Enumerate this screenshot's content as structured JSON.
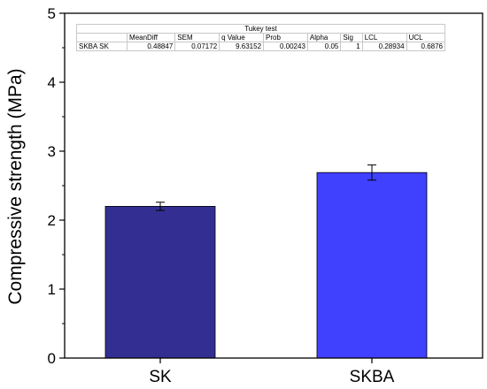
{
  "chart_data": {
    "type": "bar",
    "categories": [
      "SK",
      "SKBA"
    ],
    "values": [
      2.2,
      2.69
    ],
    "errors": [
      0.06,
      0.11
    ],
    "colors": [
      "#332f92",
      "#4040ff"
    ],
    "title": "",
    "xlabel": "",
    "ylabel": "Compressive strength (MPa)",
    "ylim": [
      0,
      5
    ],
    "yticks": [
      0,
      1,
      2,
      3,
      4,
      5
    ],
    "grid": false,
    "legend": "none"
  },
  "tukey": {
    "title": "Tukey test",
    "headers": [
      "",
      "MeanDiff",
      "SEM",
      "q Value",
      "Prob",
      "Alpha",
      "Sig",
      "LCL",
      "UCL"
    ],
    "rows": [
      [
        "SKBA SK",
        "0.48847",
        "0.07172",
        "9.63152",
        "0.00243",
        "0.05",
        "1",
        "0.28934",
        "0.6876"
      ]
    ]
  }
}
